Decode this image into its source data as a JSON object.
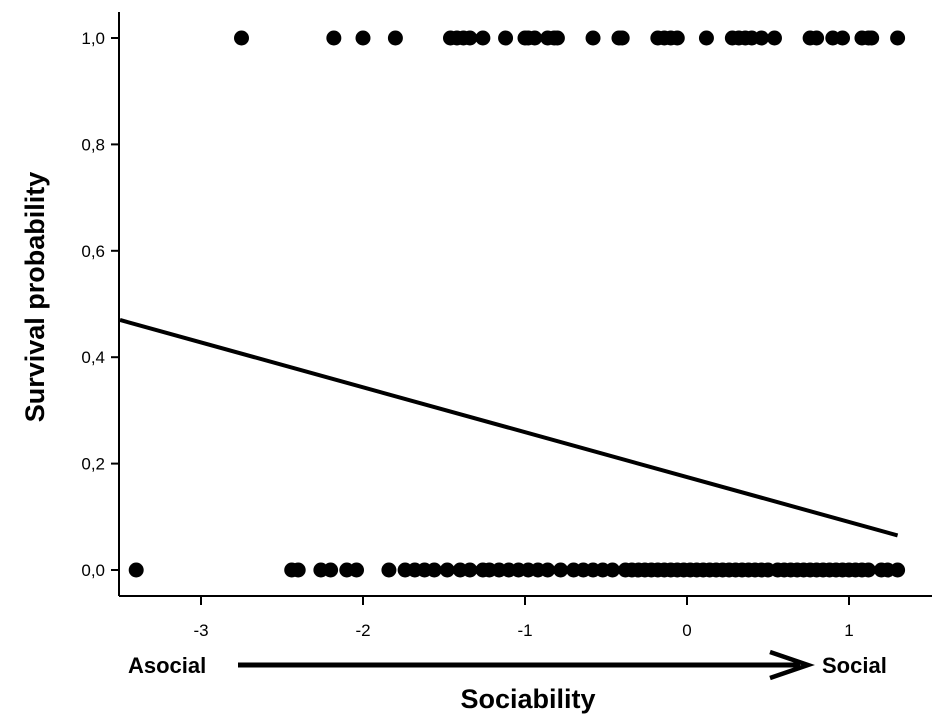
{
  "chart_data": {
    "type": "scatter",
    "title": "",
    "xlabel": "Sociability",
    "ylabel": "Survival probability",
    "xlim": [
      -3.5,
      1.5
    ],
    "ylim": [
      -0.05,
      1.05
    ],
    "x_ticks": [
      -3,
      -2,
      -1,
      0,
      1
    ],
    "x_tick_labels": [
      "-3",
      "-2",
      "-1",
      "0",
      "1"
    ],
    "y_ticks": [
      0.0,
      0.2,
      0.4,
      0.6,
      0.8,
      1.0
    ],
    "y_tick_labels": [
      "0,0",
      "0,2",
      "0,4",
      "0,6",
      "0,8",
      "1,0"
    ],
    "annotations": {
      "left": "Asocial",
      "right": "Social"
    },
    "grid": false,
    "legend": "none",
    "series": [
      {
        "type": "scatter",
        "x": [
          -2.75,
          -2.18,
          -2.0,
          -1.8,
          -1.46,
          -1.42,
          -1.38,
          -1.34,
          -1.26,
          -1.12,
          -1.0,
          -0.98,
          -0.94,
          -0.86,
          -0.82,
          -0.8,
          -0.58,
          -0.42,
          -0.4,
          -0.18,
          -0.14,
          -0.1,
          -0.06,
          0.12,
          0.28,
          0.32,
          0.36,
          0.4,
          0.46,
          0.54,
          0.76,
          0.8,
          0.9,
          0.96,
          1.08,
          1.12,
          1.14,
          1.3
        ],
        "y": [
          1,
          1,
          1,
          1,
          1,
          1,
          1,
          1,
          1,
          1,
          1,
          1,
          1,
          1,
          1,
          1,
          1,
          1,
          1,
          1,
          1,
          1,
          1,
          1,
          1,
          1,
          1,
          1,
          1,
          1,
          1,
          1,
          1,
          1,
          1,
          1,
          1,
          1
        ]
      },
      {
        "type": "scatter",
        "x": [
          -3.4,
          -2.44,
          -2.4,
          -2.26,
          -2.2,
          -2.1,
          -2.04,
          -1.84,
          -1.74,
          -1.68,
          -1.62,
          -1.56,
          -1.48,
          -1.4,
          -1.34,
          -1.26,
          -1.22,
          -1.16,
          -1.1,
          -1.04,
          -0.98,
          -0.92,
          -0.86,
          -0.78,
          -0.7,
          -0.64,
          -0.58,
          -0.52,
          -0.46,
          -0.38,
          -0.34,
          -0.3,
          -0.26,
          -0.22,
          -0.18,
          -0.14,
          -0.1,
          -0.06,
          -0.02,
          0.02,
          0.06,
          0.1,
          0.14,
          0.18,
          0.22,
          0.26,
          0.3,
          0.34,
          0.38,
          0.42,
          0.46,
          0.5,
          0.56,
          0.6,
          0.64,
          0.68,
          0.72,
          0.76,
          0.8,
          0.84,
          0.88,
          0.92,
          0.96,
          1.0,
          1.04,
          1.08,
          1.12,
          1.2,
          1.24,
          1.3
        ],
        "y": [
          0,
          0,
          0,
          0,
          0,
          0,
          0,
          0,
          0,
          0,
          0,
          0,
          0,
          0,
          0,
          0,
          0,
          0,
          0,
          0,
          0,
          0,
          0,
          0,
          0,
          0,
          0,
          0,
          0,
          0,
          0,
          0,
          0,
          0,
          0,
          0,
          0,
          0,
          0,
          0,
          0,
          0,
          0,
          0,
          0,
          0,
          0,
          0,
          0,
          0,
          0,
          0,
          0,
          0,
          0,
          0,
          0,
          0,
          0,
          0,
          0,
          0,
          0,
          0,
          0,
          0,
          0,
          0,
          0,
          0
        ]
      },
      {
        "type": "line",
        "x": [
          -3.5,
          1.3
        ],
        "y": [
          0.47,
          0.065
        ]
      }
    ],
    "colors": {
      "points": "#000000",
      "fit_line": "#000000",
      "axes": "#000000"
    }
  }
}
